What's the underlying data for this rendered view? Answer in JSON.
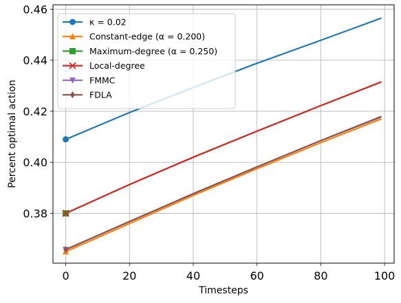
{
  "chart_data": {
    "type": "line",
    "title": "",
    "xlabel": "Timesteps",
    "ylabel": "Percent optimal action",
    "xlim": [
      -4,
      103
    ],
    "ylim": [
      0.3605,
      0.4617
    ],
    "xticks": [
      0,
      20,
      40,
      60,
      80,
      100
    ],
    "yticks": [
      0.38,
      0.4,
      0.42,
      0.44,
      0.46
    ],
    "xtick_labels": [
      "0",
      "20",
      "40",
      "60",
      "80",
      "100"
    ],
    "ytick_labels": [
      "0.38",
      "0.40",
      "0.42",
      "0.44",
      "0.46"
    ],
    "grid": true,
    "legend_position": "top-left",
    "marker_x": [
      0
    ],
    "series": [
      {
        "name": "κ = 0.02",
        "color": "#1f77b4",
        "marker": "circle",
        "x": [
          0,
          20,
          40,
          60,
          80,
          99
        ],
        "y": [
          0.409,
          0.4195,
          0.4293,
          0.4388,
          0.4478,
          0.4565
        ]
      },
      {
        "name": "Constant-edge (α = 0.200)",
        "color": "#ff7f0e",
        "marker": "triangle-up",
        "x": [
          0,
          20,
          40,
          60,
          80,
          99
        ],
        "y": [
          0.365,
          0.376,
          0.387,
          0.3975,
          0.4077,
          0.417
        ]
      },
      {
        "name": "Maximum-degree (α = 0.250)",
        "color": "#2ca02c",
        "marker": "square",
        "x": [
          0,
          20,
          40,
          60,
          80,
          99
        ],
        "y": [
          0.38,
          0.3913,
          0.402,
          0.4122,
          0.4222,
          0.4315
        ]
      },
      {
        "name": "Local-degree",
        "color": "#d62728",
        "marker": "x",
        "x": [
          0,
          20,
          40,
          60,
          80,
          99
        ],
        "y": [
          0.38,
          0.3913,
          0.402,
          0.4122,
          0.4222,
          0.4315
        ]
      },
      {
        "name": "FMMC",
        "color": "#9467bd",
        "marker": "triangle-down",
        "x": [
          0,
          20,
          40,
          60,
          80,
          99
        ],
        "y": [
          0.3658,
          0.3768,
          0.3877,
          0.3982,
          0.4085,
          0.418
        ]
      },
      {
        "name": "FDLA",
        "color": "#8c564b",
        "marker": "diamond",
        "x": [
          0,
          20,
          40,
          60,
          80,
          99
        ],
        "y": [
          0.3658,
          0.3768,
          0.3877,
          0.3982,
          0.4085,
          0.4178
        ]
      }
    ]
  }
}
